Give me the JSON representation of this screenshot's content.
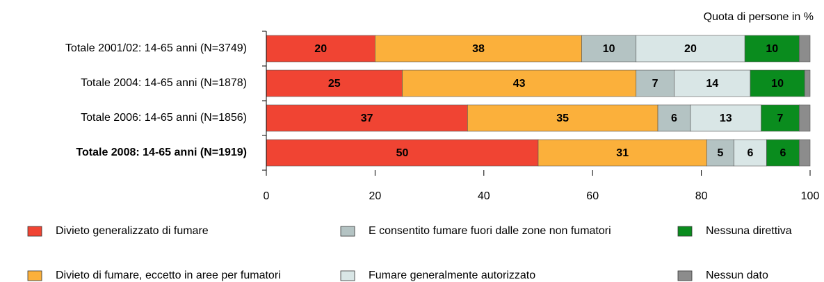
{
  "chart_data": {
    "type": "stacked_barh",
    "axis_label": "Quota di persone in %",
    "categories": [
      "Totale 2001/02: 14-65 anni (N=3749)",
      "Totale 2004: 14-65 anni (N=1878)",
      "Totale 2006: 14-65 anni (N=1856)",
      "Totale 2008: 14-65 anni (N=1919)"
    ],
    "highlight_index": 3,
    "series": [
      {
        "name": "Divieto generalizzato di fumare",
        "color": "#f04433",
        "values": [
          20,
          25,
          37,
          50
        ]
      },
      {
        "name": "Divieto di fumare, eccetto in aree per fumatori",
        "color": "#fbb03b",
        "values": [
          38,
          43,
          35,
          31
        ]
      },
      {
        "name": "E consentito fumare fuori dalle zone non fumatori",
        "color": "#b4c3c3",
        "values": [
          10,
          7,
          6,
          5
        ]
      },
      {
        "name": "Fumare generalmente autorizzato",
        "color": "#d9e6e6",
        "values": [
          20,
          14,
          13,
          6
        ]
      },
      {
        "name": "Nessuna direttiva",
        "color": "#0a8c1e",
        "values": [
          10,
          10,
          7,
          6
        ]
      },
      {
        "name": "Nessun dato",
        "color": "#8c8c8c",
        "values": [
          2,
          1,
          2,
          2
        ]
      }
    ],
    "xlim": [
      0,
      100
    ],
    "xticks": [
      0,
      20,
      40,
      60,
      80,
      100
    ]
  }
}
